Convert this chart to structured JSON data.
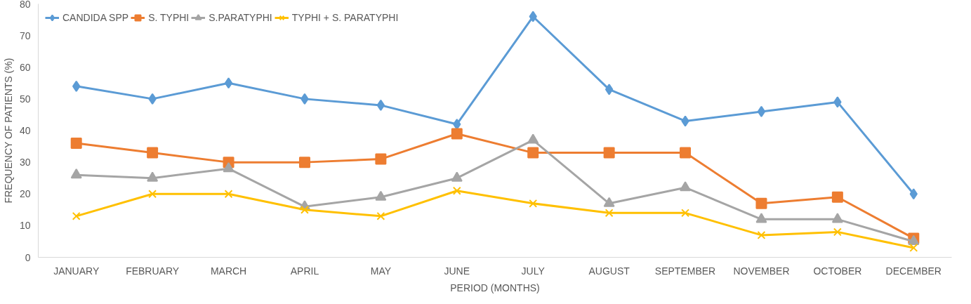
{
  "chart_data": {
    "type": "line",
    "xlabel": "PERIOD (MONTHS)",
    "ylabel": "FREQUENCY OF PATIENTS (%)",
    "categories": [
      "JANUARY",
      "FEBRUARY",
      "MARCH",
      "APRIL",
      "MAY",
      "JUNE",
      "JULY",
      "AUGUST",
      "SEPTEMBER",
      "NOVEMBER",
      "OCTOBER",
      "DECEMBER"
    ],
    "series": [
      {
        "name": "CANDIDA SPP",
        "color": "#5b9bd5",
        "marker": "diamond",
        "values": [
          54,
          50,
          55,
          50,
          48,
          42,
          76,
          53,
          43,
          46,
          49,
          20
        ]
      },
      {
        "name": "S. TYPHI",
        "color": "#ed7d31",
        "marker": "square",
        "values": [
          36,
          33,
          30,
          30,
          31,
          39,
          33,
          33,
          33,
          17,
          19,
          6
        ]
      },
      {
        "name": "S.PARATYPHI",
        "color": "#a5a5a5",
        "marker": "triangle",
        "values": [
          26,
          25,
          28,
          16,
          19,
          25,
          37,
          17,
          22,
          12,
          12,
          5
        ]
      },
      {
        "name": "TYPHI + S. PARATYPHI",
        "color": "#ffc000",
        "marker": "cross",
        "values": [
          13,
          20,
          20,
          15,
          13,
          21,
          17,
          14,
          14,
          7,
          8,
          3
        ]
      }
    ],
    "ylim": [
      0,
      80
    ],
    "yticks": [
      0,
      10,
      20,
      30,
      40,
      50,
      60,
      70,
      80
    ],
    "legend": "top",
    "grid": false
  }
}
